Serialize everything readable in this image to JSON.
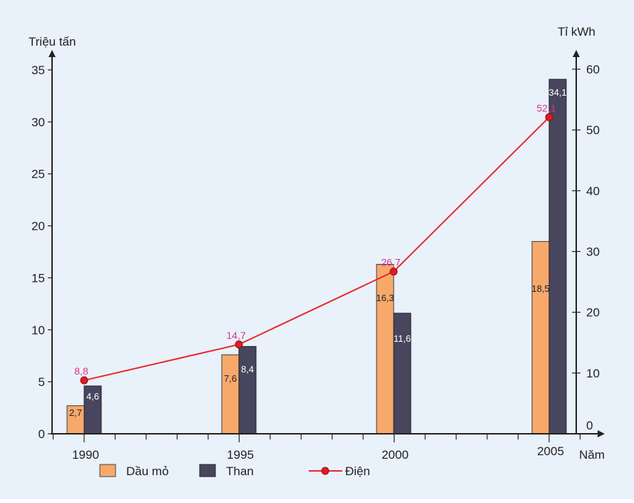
{
  "colors": {
    "background": "#e9f1fa",
    "axis": "#222222",
    "oil": "#f7a96b",
    "coal": "#47465e",
    "electricity": "#e8282c",
    "electricity_marker": "#e21b23",
    "electricity_label": "#e0318e"
  },
  "chart_data": {
    "type": "bar",
    "categories": [
      "1990",
      "1995",
      "2000",
      "2005"
    ],
    "xlabel": "Năm",
    "ylabel_left": "Triệu tấn",
    "ylabel_right": "Tỉ kWh",
    "ylim_left": [
      0,
      35
    ],
    "ylim_right": [
      0,
      60
    ],
    "yticks_left": [
      "0",
      "5",
      "10",
      "15",
      "20",
      "25",
      "30",
      "35"
    ],
    "yticks_right": [
      "0",
      "10",
      "20",
      "30",
      "40",
      "50",
      "60"
    ],
    "grid": false,
    "legend_position": "bottom",
    "series": [
      {
        "name": "Dầu mỏ",
        "chart": "bar",
        "axis": "left",
        "values": [
          2.7,
          7.6,
          16.3,
          18.5
        ],
        "labels": [
          "2,7",
          "7,6",
          "16,3",
          "18,5"
        ]
      },
      {
        "name": "Than",
        "chart": "bar",
        "axis": "left",
        "values": [
          4.6,
          8.4,
          11.6,
          34.1
        ],
        "labels": [
          "4,6",
          "8,4",
          "11,6",
          "34,1"
        ]
      },
      {
        "name": "Điện",
        "chart": "line",
        "axis": "right",
        "values": [
          8.8,
          14.7,
          26.7,
          52.1
        ],
        "labels": [
          "8,8",
          "14,7",
          "26,7",
          "52,1"
        ]
      }
    ]
  }
}
